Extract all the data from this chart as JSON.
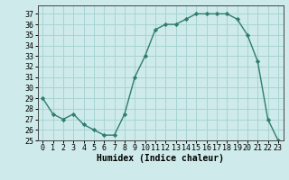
{
  "x": [
    0,
    1,
    2,
    3,
    4,
    5,
    6,
    7,
    8,
    9,
    10,
    11,
    12,
    13,
    14,
    15,
    16,
    17,
    18,
    19,
    20,
    21,
    22,
    23
  ],
  "y": [
    29,
    27.5,
    27,
    27.5,
    26.5,
    26,
    25.5,
    25.5,
    27.5,
    31,
    33,
    35.5,
    36,
    36,
    36.5,
    37,
    37,
    37,
    37,
    36.5,
    35,
    32.5,
    27,
    25
  ],
  "xlabel": "Humidex (Indice chaleur)",
  "xlim": [
    -0.5,
    23.5
  ],
  "ylim": [
    25,
    37.8
  ],
  "yticks": [
    25,
    26,
    27,
    28,
    29,
    30,
    31,
    32,
    33,
    34,
    35,
    36,
    37
  ],
  "xtick_labels": [
    "0",
    "1",
    "2",
    "3",
    "4",
    "5",
    "6",
    "7",
    "8",
    "9",
    "10",
    "11",
    "12",
    "13",
    "14",
    "15",
    "16",
    "17",
    "18",
    "19",
    "20",
    "21",
    "22",
    "23"
  ],
  "line_color": "#2e7d6e",
  "marker": "D",
  "marker_size": 2.2,
  "bg_color": "#ceeaea",
  "grid_color": "#a8d4d4",
  "label_fontsize": 7,
  "tick_fontsize": 6
}
